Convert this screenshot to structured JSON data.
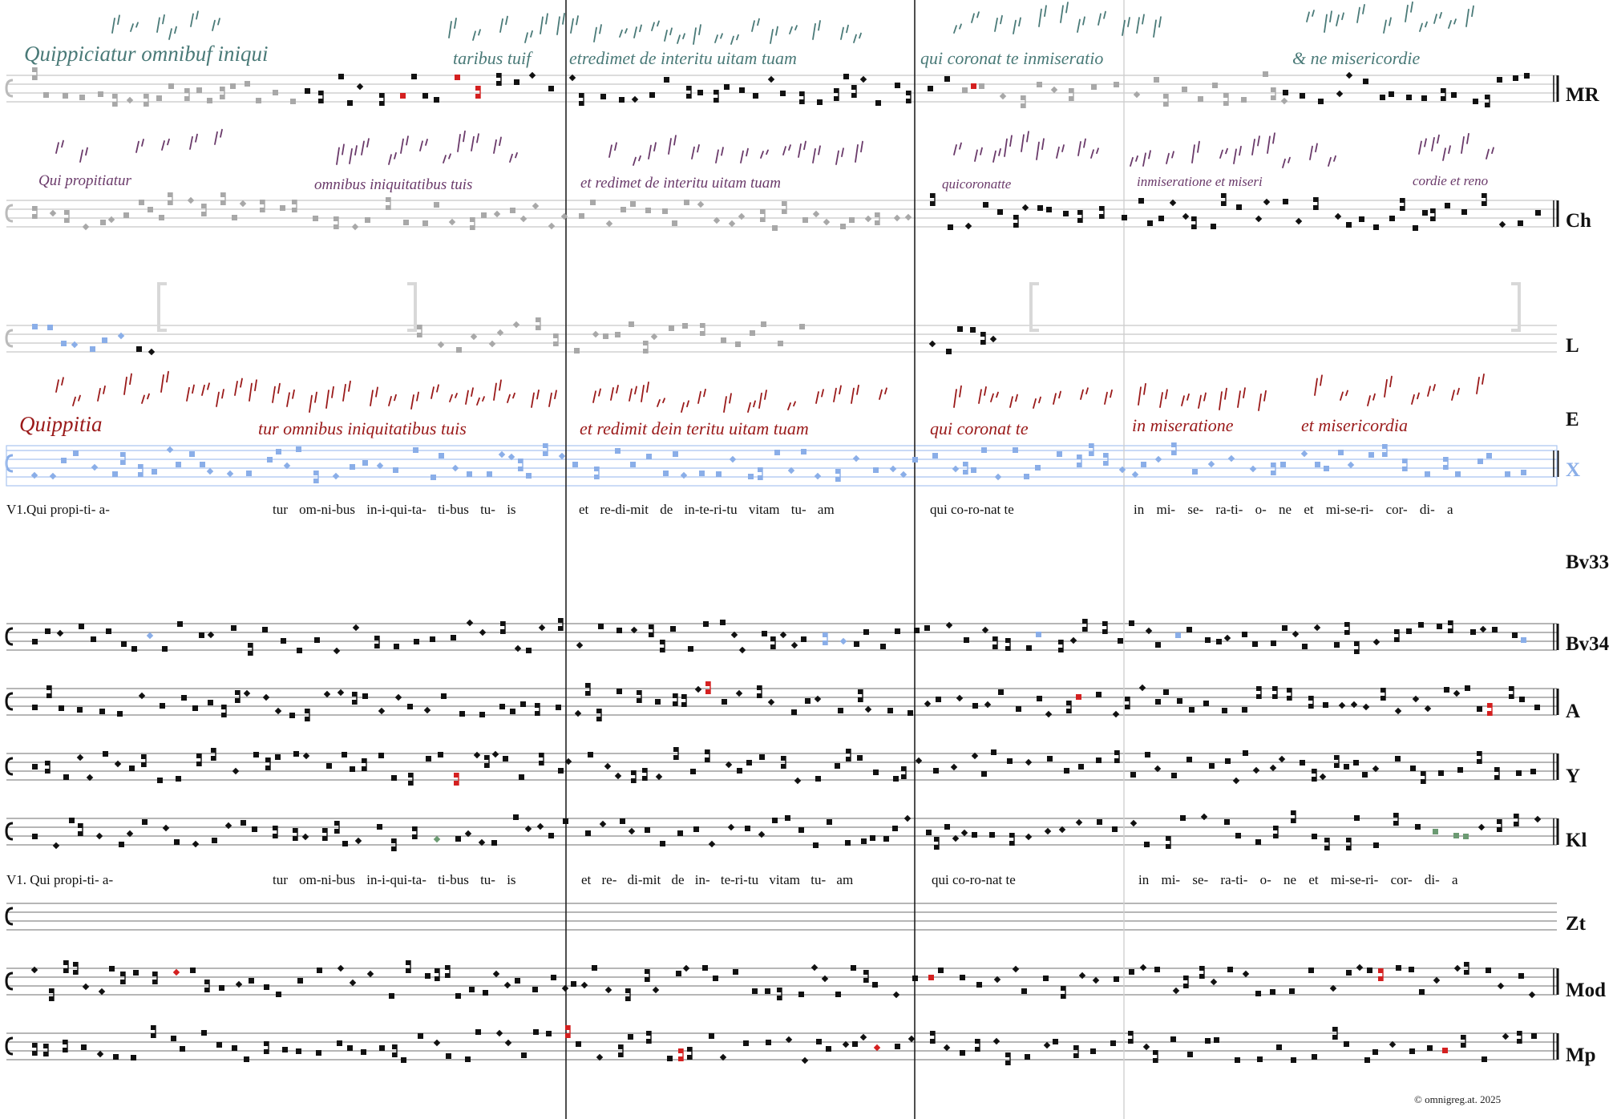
{
  "labels": {
    "mr": "MR",
    "ch": "Ch",
    "l": "L",
    "e": "E",
    "x": "X",
    "bv33": "Bv33",
    "bv34": "Bv34",
    "a": "A",
    "y": "Y",
    "kl": "Kl",
    "zt": "Zt",
    "mod": "Mod",
    "mp": "Mp"
  },
  "colors": {
    "neume": "#111111",
    "greyed": "#a8a8a8",
    "blue": "#8aaee8",
    "red": "#d42020",
    "green": "#6b9a72",
    "teal_script": "#4a7a78",
    "purple_script": "#6a3a6a",
    "darkred_script": "#9a1a1a",
    "x_label": "#8aaee8"
  },
  "manuscripts": {
    "mr": {
      "t1": "Quippiciatur omnibuf iniqui",
      "t2": "taribus tuif",
      "t3": "etredimet de interitu uitam tuam",
      "t4": "qui coronat te inmiseratio",
      "t5": "& ne misericordie"
    },
    "ch": {
      "t1": "Qui propitiatur",
      "t2": "omnibus iniquitatibus tuis",
      "t3": "et redimet de interitu uitam tuam",
      "t4": "quicoronatte",
      "t5": "inmiseratione et miseri",
      "t6": "cordie et reno"
    },
    "e": {
      "t1": "Quippitia",
      "t2": "tur omnibus iniquitatibus tuis",
      "t3": "et redimit dein teritu uitam tuam",
      "t4": "qui coronat te",
      "t5": "in miseratione",
      "t6": "et misericordia"
    }
  },
  "lyrics1": {
    "s1": "V1.Qui propi-ti- a-",
    "s2": "tur om-ni-bus in-i-qui-ta- ti-bus tu- is",
    "s3": "et re-di-mit de in-te-ri-tu vitam tu- am",
    "s4": "qui co-ro-nat te",
    "s5": "in mi- se- ra-ti- o- ne et mi-se-ri- cor- di- a"
  },
  "lyrics2": {
    "s1": "V1. Qui propi-ti- a-",
    "s2": "tur om-ni-bus in-i-qui-ta- ti-bus tu- is",
    "s3": "et re- di-mit de in- te-ri-tu vitam tu- am",
    "s4": "qui co-ro-nat te",
    "s5": "in mi- se- ra-ti- o- ne et mi-se-ri- cor- di- a"
  },
  "copyright": "©  omnigreg.at.   2025"
}
